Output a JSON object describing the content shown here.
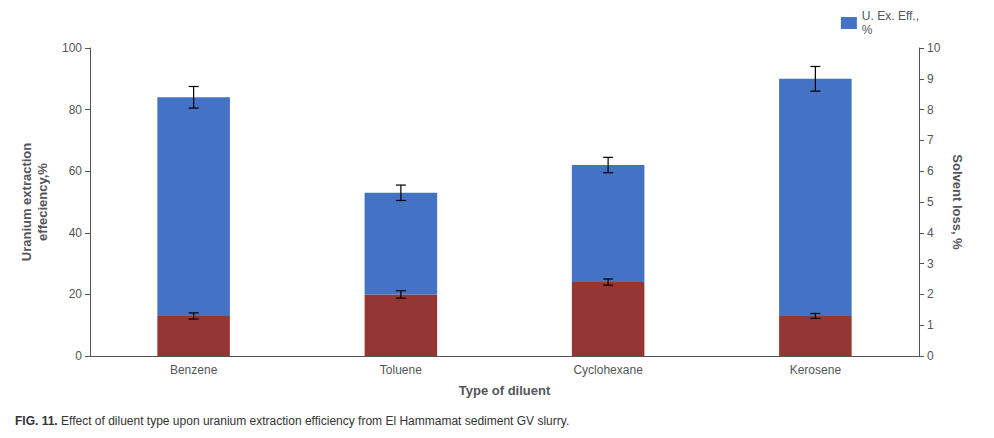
{
  "chart_data": {
    "type": "bar",
    "categories": [
      "Benzene",
      "Toluene",
      "Cyclohexane",
      "Kerosene"
    ],
    "series": [
      {
        "color": "#943634",
        "values": [
          13,
          20,
          24,
          13
        ],
        "errors": [
          1.0,
          1.2,
          1.0,
          0.8
        ]
      },
      {
        "name": "U. Ex. Eff.,\n%",
        "color": "#4472C4",
        "values": [
          71,
          33,
          38,
          77
        ],
        "errors": [
          3.5,
          2.5,
          2.5,
          4.0
        ]
      }
    ],
    "stacked": true,
    "xlabel": "Type of diluent",
    "ylabel": "Uranium extraction\neffeciency,%",
    "y2label": "Solvent loss, %",
    "ylim": [
      0,
      100
    ],
    "yticks": [
      0,
      20,
      40,
      60,
      80,
      100
    ],
    "y2lim": [
      0,
      10
    ],
    "y2ticks": [
      0,
      1,
      2,
      3,
      4,
      5,
      6,
      7,
      8,
      9,
      10
    ],
    "legend": "upper right",
    "grid": false,
    "caption": [
      "FIG. 11.",
      " Effect of diluent type upon uranium extraction efficiency from El Hammamat sediment GV slurry."
    ]
  }
}
